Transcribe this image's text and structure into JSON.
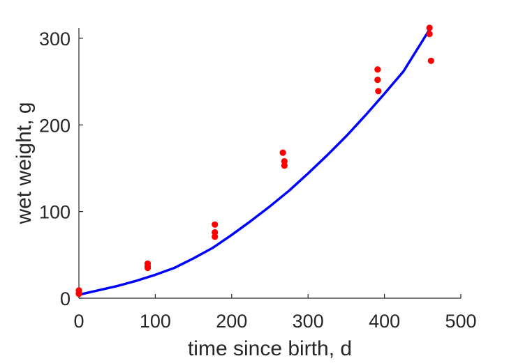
{
  "chart_data": {
    "type": "scatter",
    "xlabel": "time since birth, d",
    "ylabel": "wet weight, g",
    "xlim": [
      0,
      500
    ],
    "ylim": [
      0,
      312
    ],
    "xticks": [
      0,
      100,
      200,
      300,
      400,
      500
    ],
    "yticks": [
      0,
      100,
      200,
      300
    ],
    "grid": false,
    "colors": {
      "points": "#ff0000",
      "fit_line": "#0000ff",
      "axes": "#262626"
    },
    "series": [
      {
        "type": "scatter",
        "x": [
          0,
          0,
          0,
          90,
          90,
          90,
          178,
          178,
          178,
          267,
          269,
          269,
          391,
          391,
          392,
          459,
          459,
          461
        ],
        "y": [
          9,
          6,
          5,
          40,
          37,
          35,
          85,
          76,
          71,
          168,
          158,
          153,
          264,
          252,
          239,
          312,
          305,
          274
        ]
      },
      {
        "type": "line",
        "x": [
          0,
          25,
          50,
          75,
          100,
          125,
          150,
          175,
          200,
          225,
          250,
          275,
          300,
          325,
          350,
          375,
          400,
          425,
          459
        ],
        "y": [
          4,
          9,
          14,
          20,
          27,
          35,
          46,
          58,
          73,
          89,
          106,
          124,
          144,
          165,
          187,
          211,
          236,
          262,
          310
        ]
      }
    ]
  }
}
